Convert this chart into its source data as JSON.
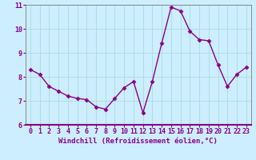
{
  "x": [
    0,
    1,
    2,
    3,
    4,
    5,
    6,
    7,
    8,
    9,
    10,
    11,
    12,
    13,
    14,
    15,
    16,
    17,
    18,
    19,
    20,
    21,
    22,
    23
  ],
  "y": [
    8.3,
    8.1,
    7.6,
    7.4,
    7.2,
    7.1,
    7.05,
    6.75,
    6.65,
    7.1,
    7.55,
    7.8,
    6.5,
    7.8,
    9.4,
    10.9,
    10.75,
    9.9,
    9.55,
    9.5,
    8.5,
    7.6,
    8.1,
    8.4
  ],
  "line_color": "#880088",
  "marker": "D",
  "markersize": 2.5,
  "linewidth": 1.0,
  "bg_color": "#cceeff",
  "grid_color": "#aadddd",
  "spine_color": "#888888",
  "xlabel": "Windchill (Refroidissement éolien,°C)",
  "tick_color": "#880088",
  "xlabel_color": "#880088",
  "xlabel_fontsize": 6.5,
  "tick_fontsize": 6.0,
  "ylim": [
    6,
    11
  ],
  "xlim": [
    -0.5,
    23.5
  ],
  "yticks": [
    6,
    7,
    8,
    9,
    10,
    11
  ],
  "xticks": [
    0,
    1,
    2,
    3,
    4,
    5,
    6,
    7,
    8,
    9,
    10,
    11,
    12,
    13,
    14,
    15,
    16,
    17,
    18,
    19,
    20,
    21,
    22,
    23
  ]
}
